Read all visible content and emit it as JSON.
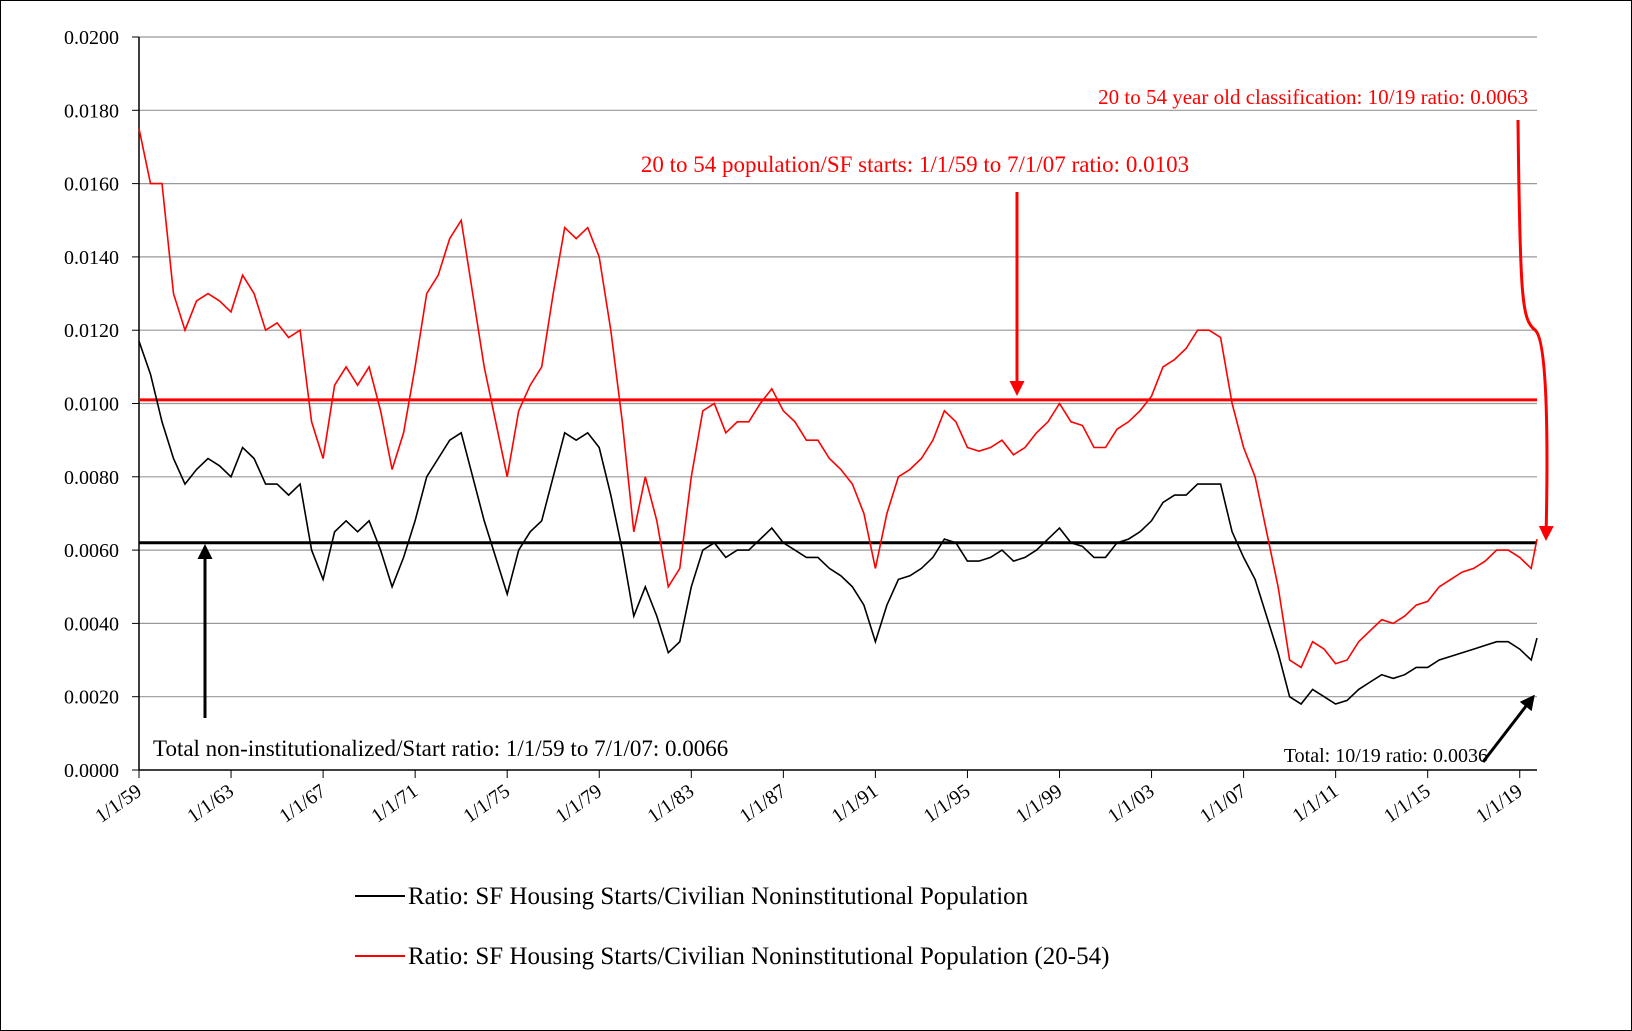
{
  "chart_data": {
    "type": "line",
    "x": [
      "1/1/59",
      "7/1/59",
      "1/1/60",
      "7/1/60",
      "1/1/61",
      "7/1/61",
      "1/1/62",
      "7/1/62",
      "1/1/63",
      "7/1/63",
      "1/1/64",
      "7/1/64",
      "1/1/65",
      "7/1/65",
      "1/1/66",
      "7/1/66",
      "1/1/67",
      "7/1/67",
      "1/1/68",
      "7/1/68",
      "1/1/69",
      "7/1/69",
      "1/1/70",
      "7/1/70",
      "1/1/71",
      "7/1/71",
      "1/1/72",
      "7/1/72",
      "1/1/73",
      "7/1/73",
      "1/1/74",
      "7/1/74",
      "1/1/75",
      "7/1/75",
      "1/1/76",
      "7/1/76",
      "1/1/77",
      "7/1/77",
      "1/1/78",
      "7/1/78",
      "1/1/79",
      "7/1/79",
      "1/1/80",
      "7/1/80",
      "1/1/81",
      "7/1/81",
      "1/1/82",
      "7/1/82",
      "1/1/83",
      "7/1/83",
      "1/1/84",
      "7/1/84",
      "1/1/85",
      "7/1/85",
      "1/1/86",
      "7/1/86",
      "1/1/87",
      "7/1/87",
      "1/1/88",
      "7/1/88",
      "1/1/89",
      "7/1/89",
      "1/1/90",
      "7/1/90",
      "1/1/91",
      "7/1/91",
      "1/1/92",
      "7/1/92",
      "1/1/93",
      "7/1/93",
      "1/1/94",
      "7/1/94",
      "1/1/95",
      "7/1/95",
      "1/1/96",
      "7/1/96",
      "1/1/97",
      "7/1/97",
      "1/1/98",
      "7/1/98",
      "1/1/99",
      "7/1/99",
      "1/1/00",
      "7/1/00",
      "1/1/01",
      "7/1/01",
      "1/1/02",
      "7/1/02",
      "1/1/03",
      "7/1/03",
      "1/1/04",
      "7/1/04",
      "1/1/05",
      "7/1/05",
      "1/1/06",
      "7/1/06",
      "1/1/07",
      "7/1/07",
      "1/1/08",
      "7/1/08",
      "1/1/09",
      "7/1/09",
      "1/1/10",
      "7/1/10",
      "1/1/11",
      "7/1/11",
      "1/1/12",
      "7/1/12",
      "1/1/13",
      "7/1/13",
      "1/1/14",
      "7/1/14",
      "1/1/15",
      "7/1/15",
      "1/1/16",
      "7/1/16",
      "1/1/17",
      "7/1/17",
      "1/1/18",
      "7/1/18",
      "1/1/19",
      "7/1/19",
      "10/1/19"
    ],
    "series": [
      {
        "name": "Ratio: SF Housing Starts/Civilian Noninstitutional Population",
        "color": "#000000",
        "values": [
          0.0117,
          0.0108,
          0.0095,
          0.0085,
          0.0078,
          0.0082,
          0.0085,
          0.0083,
          0.008,
          0.0088,
          0.0085,
          0.0078,
          0.0078,
          0.0075,
          0.0078,
          0.006,
          0.0052,
          0.0065,
          0.0068,
          0.0065,
          0.0068,
          0.006,
          0.005,
          0.0058,
          0.0068,
          0.008,
          0.0085,
          0.009,
          0.0092,
          0.008,
          0.0068,
          0.0058,
          0.0048,
          0.006,
          0.0065,
          0.0068,
          0.008,
          0.0092,
          0.009,
          0.0092,
          0.0088,
          0.0075,
          0.006,
          0.0042,
          0.005,
          0.0042,
          0.0032,
          0.0035,
          0.005,
          0.006,
          0.0062,
          0.0058,
          0.006,
          0.006,
          0.0063,
          0.0066,
          0.0062,
          0.006,
          0.0058,
          0.0058,
          0.0055,
          0.0053,
          0.005,
          0.0045,
          0.0035,
          0.0045,
          0.0052,
          0.0053,
          0.0055,
          0.0058,
          0.0063,
          0.0062,
          0.0057,
          0.0057,
          0.0058,
          0.006,
          0.0057,
          0.0058,
          0.006,
          0.0063,
          0.0066,
          0.0062,
          0.0061,
          0.0058,
          0.0058,
          0.0062,
          0.0063,
          0.0065,
          0.0068,
          0.0073,
          0.0075,
          0.0075,
          0.0078,
          0.0078,
          0.0078,
          0.0065,
          0.0058,
          0.0052,
          0.0042,
          0.0032,
          0.002,
          0.0018,
          0.0022,
          0.002,
          0.0018,
          0.0019,
          0.0022,
          0.0024,
          0.0026,
          0.0025,
          0.0026,
          0.0028,
          0.0028,
          0.003,
          0.0031,
          0.0032,
          0.0033,
          0.0034,
          0.0035,
          0.0035,
          0.0033,
          0.003,
          0.0036
        ]
      },
      {
        "name": "Ratio: SF Housing Starts/Civilian Noninstitutional Population (20-54)",
        "color": "#ff0000",
        "values": [
          0.0175,
          0.016,
          0.016,
          0.013,
          0.012,
          0.0128,
          0.013,
          0.0128,
          0.0125,
          0.0135,
          0.013,
          0.012,
          0.0122,
          0.0118,
          0.012,
          0.0095,
          0.0085,
          0.0105,
          0.011,
          0.0105,
          0.011,
          0.0098,
          0.0082,
          0.0092,
          0.011,
          0.013,
          0.0135,
          0.0145,
          0.015,
          0.013,
          0.011,
          0.0095,
          0.008,
          0.0098,
          0.0105,
          0.011,
          0.013,
          0.0148,
          0.0145,
          0.0148,
          0.014,
          0.012,
          0.0095,
          0.0065,
          0.008,
          0.0068,
          0.005,
          0.0055,
          0.008,
          0.0098,
          0.01,
          0.0092,
          0.0095,
          0.0095,
          0.01,
          0.0104,
          0.0098,
          0.0095,
          0.009,
          0.009,
          0.0085,
          0.0082,
          0.0078,
          0.007,
          0.0055,
          0.007,
          0.008,
          0.0082,
          0.0085,
          0.009,
          0.0098,
          0.0095,
          0.0088,
          0.0087,
          0.0088,
          0.009,
          0.0086,
          0.0088,
          0.0092,
          0.0095,
          0.01,
          0.0095,
          0.0094,
          0.0088,
          0.0088,
          0.0093,
          0.0095,
          0.0098,
          0.0102,
          0.011,
          0.0112,
          0.0115,
          0.012,
          0.012,
          0.0118,
          0.01,
          0.0088,
          0.008,
          0.0065,
          0.005,
          0.003,
          0.0028,
          0.0035,
          0.0033,
          0.0029,
          0.003,
          0.0035,
          0.0038,
          0.0041,
          0.004,
          0.0042,
          0.0045,
          0.0046,
          0.005,
          0.0052,
          0.0054,
          0.0055,
          0.0057,
          0.006,
          0.006,
          0.0058,
          0.0055,
          0.0063
        ]
      }
    ],
    "reference_lines": [
      {
        "value": 0.0062,
        "color": "#000000"
      },
      {
        "value": 0.0101,
        "color": "#ff0000"
      }
    ],
    "xlim": [
      "1/1/59",
      "10/1/19"
    ],
    "xticks": [
      "1/1/59",
      "1/1/63",
      "1/1/67",
      "1/1/71",
      "1/1/75",
      "1/1/79",
      "1/1/83",
      "1/1/87",
      "1/1/91",
      "1/1/95",
      "1/1/99",
      "1/1/03",
      "1/1/07",
      "1/1/11",
      "1/1/15",
      "1/1/19"
    ],
    "ylim": [
      0,
      0.02
    ],
    "yticks": [
      {
        "value": 0,
        "label": "0.0000"
      },
      {
        "value": 0.002,
        "label": "0.0020"
      },
      {
        "value": 0.004,
        "label": "0.0040"
      },
      {
        "value": 0.006,
        "label": "0.0060"
      },
      {
        "value": 0.008,
        "label": "0.0080"
      },
      {
        "value": 0.01,
        "label": "0.0100"
      },
      {
        "value": 0.012,
        "label": "0.0120"
      },
      {
        "value": 0.014,
        "label": "0.0140"
      },
      {
        "value": 0.016,
        "label": "0.0160"
      },
      {
        "value": 0.018,
        "label": "0.0180"
      },
      {
        "value": 0.02,
        "label": "0.0200"
      }
    ],
    "grid": true,
    "annotations": [
      "20 to 54 year old classification: 10/19 ratio: 0.0063",
      "20 to 54 population/SF starts: 1/1/59 to 7/1/07 ratio: 0.0103",
      "Total non-institutionalized/Start ratio: 1/1/59 to 7/1/07: 0.0066",
      "Total: 10/19 ratio: 0.0036"
    ]
  }
}
